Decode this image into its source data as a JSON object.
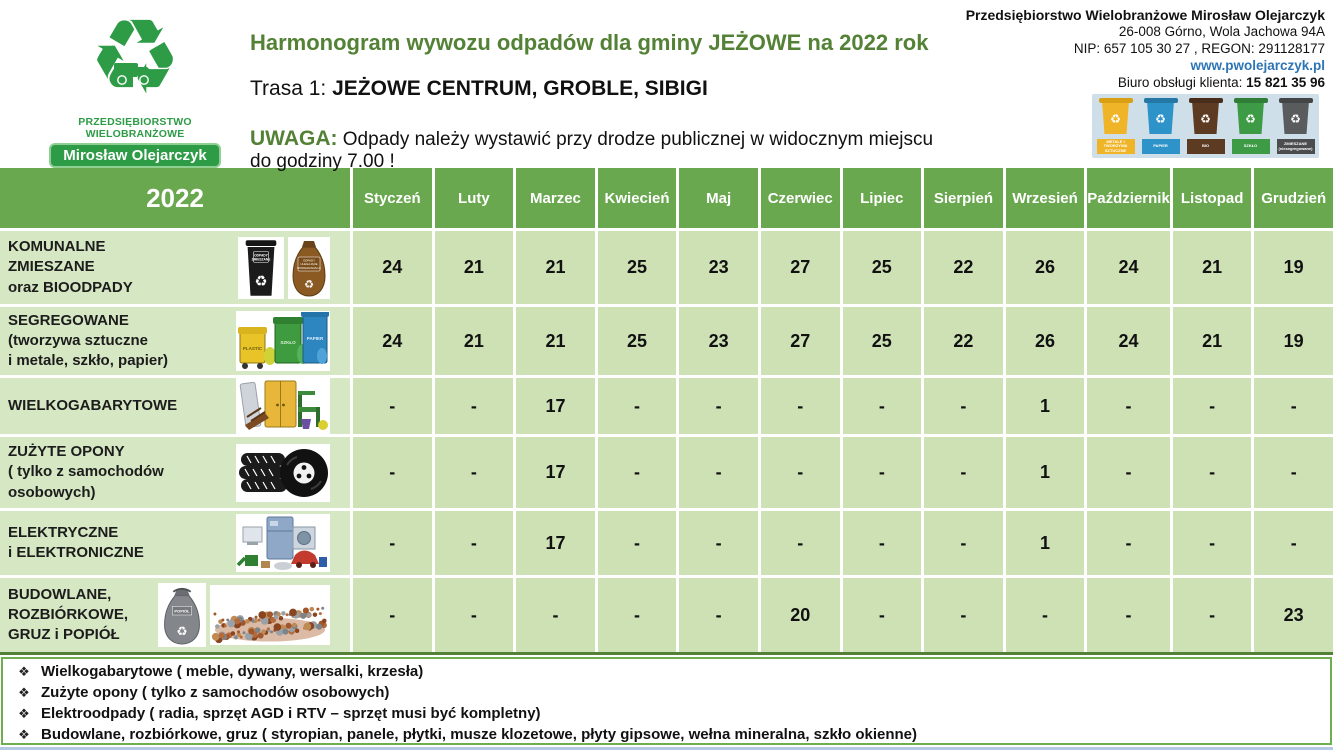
{
  "logo": {
    "org": "PRZEDSIĘBIORSTWO WIELOBRANŻOWE",
    "owner": "Mirosław Olejarczyk"
  },
  "header": {
    "title": "Harmonogram wywozu odpadów dla gminy JEŻOWE na 2022 rok",
    "route_prefix": "Trasa 1:",
    "route_value": "JEŻOWE CENTRUM, GROBLE, SIBIGI",
    "notice_label": "UWAGA:",
    "notice_text": "Odpady należy wystawić przy drodze publicznej w widocznym miejscu do godziny 7.00 !"
  },
  "company": {
    "name": "Przedsiębiorstwo Wielobranżowe Mirosław Olejarczyk",
    "address": "26-008 Górno, Wola Jachowa 94A",
    "registry": "NIP: 657 105 30 27 , REGON: 291128177",
    "website": "www.pwolejarczyk.pl",
    "service_label": "Biuro obsługi klienta:",
    "service_phone": "15 821 35 96"
  },
  "bins_legend": [
    {
      "label": "METALE I TWORZYWA SZTUCZNE",
      "color": "#f0b429",
      "lid": "#d99f15",
      "tag": "#f0b429"
    },
    {
      "label": "PAPIER",
      "color": "#2d93c8",
      "lid": "#2578a6",
      "tag": "#2d93c8"
    },
    {
      "label": "BIO",
      "color": "#5d3b23",
      "lid": "#482d1a",
      "tag": "#5d3b23"
    },
    {
      "label": "SZKŁO",
      "color": "#3d9b45",
      "lid": "#2f7d36",
      "tag": "#3d9b45"
    },
    {
      "label": "ZMIESZANE (niesegregowane)",
      "color": "#595b5d",
      "lid": "#434547",
      "tag": "#4a4c4e"
    }
  ],
  "schedule": {
    "year": "2022",
    "months": [
      "Styczeń",
      "Luty",
      "Marzec",
      "Kwiecień",
      "Maj",
      "Czerwiec",
      "Lipiec",
      "Sierpień",
      "Wrzesień",
      "Październik",
      "Listopad",
      "Grudzień"
    ],
    "rows": [
      {
        "icon": "mixed-waste",
        "label_lines": [
          "KOMUNALNE",
          "ZMIESZANE",
          "oraz BIOODPADY"
        ],
        "values": [
          "24",
          "21",
          "21",
          "25",
          "23",
          "27",
          "25",
          "22",
          "26",
          "24",
          "21",
          "19"
        ]
      },
      {
        "icon": "segregated",
        "label_lines": [
          "SEGREGOWANE",
          "(tworzywa sztuczne",
          "i metale, szkło, papier)"
        ],
        "values": [
          "24",
          "21",
          "21",
          "25",
          "23",
          "27",
          "25",
          "22",
          "26",
          "24",
          "21",
          "19"
        ]
      },
      {
        "icon": "bulky",
        "label_lines": [
          "WIELKOGABARYTOWE"
        ],
        "values": [
          "-",
          "-",
          "17",
          "-",
          "-",
          "-",
          "-",
          "-",
          "1",
          "-",
          "-",
          "-"
        ]
      },
      {
        "icon": "tires",
        "label_lines": [
          "ZUŻYTE OPONY",
          "( tylko z samochodów",
          "osobowych)"
        ],
        "values": [
          "-",
          "-",
          "17",
          "-",
          "-",
          "-",
          "-",
          "-",
          "1",
          "-",
          "-",
          "-"
        ]
      },
      {
        "icon": "electronics",
        "label_lines": [
          "ELEKTRYCZNE",
          " i ELEKTRONICZNE"
        ],
        "values": [
          "-",
          "-",
          "17",
          "-",
          "-",
          "-",
          "-",
          "-",
          "1",
          "-",
          "-",
          "-"
        ]
      },
      {
        "icon": "construction",
        "label_lines": [
          "BUDOWLANE,",
          "ROZBIÓRKOWE,",
          "GRUZ i POPIÓŁ"
        ],
        "values": [
          "-",
          "-",
          "-",
          "-",
          "-",
          "20",
          "-",
          "-",
          "-",
          "-",
          "-",
          "23"
        ]
      }
    ]
  },
  "notes": {
    "bullet": "❖",
    "items": [
      "Wielkogabarytowe ( meble, dywany, wersalki, krzesła)",
      "Zużyte opony ( tylko z samochodów osobowych)",
      "Elektroodpady ( radia, sprzęt AGD i RTV – sprzęt musi być kompletny)",
      "Budowlane, rozbiórkowe, gruz ( styropian, panele, płytki, musze klozetowe, płyty gipsowe, wełna mineralna, szkło okienne)"
    ]
  },
  "colors": {
    "brand_green": "#2e9b47",
    "header_green": "#6aa84f",
    "accent_green": "#538135",
    "label_green": "#d6e7c3",
    "cell_green": "#cde1b5",
    "link_blue": "#2e75b6",
    "bar_blue": "#b6c9e2"
  }
}
